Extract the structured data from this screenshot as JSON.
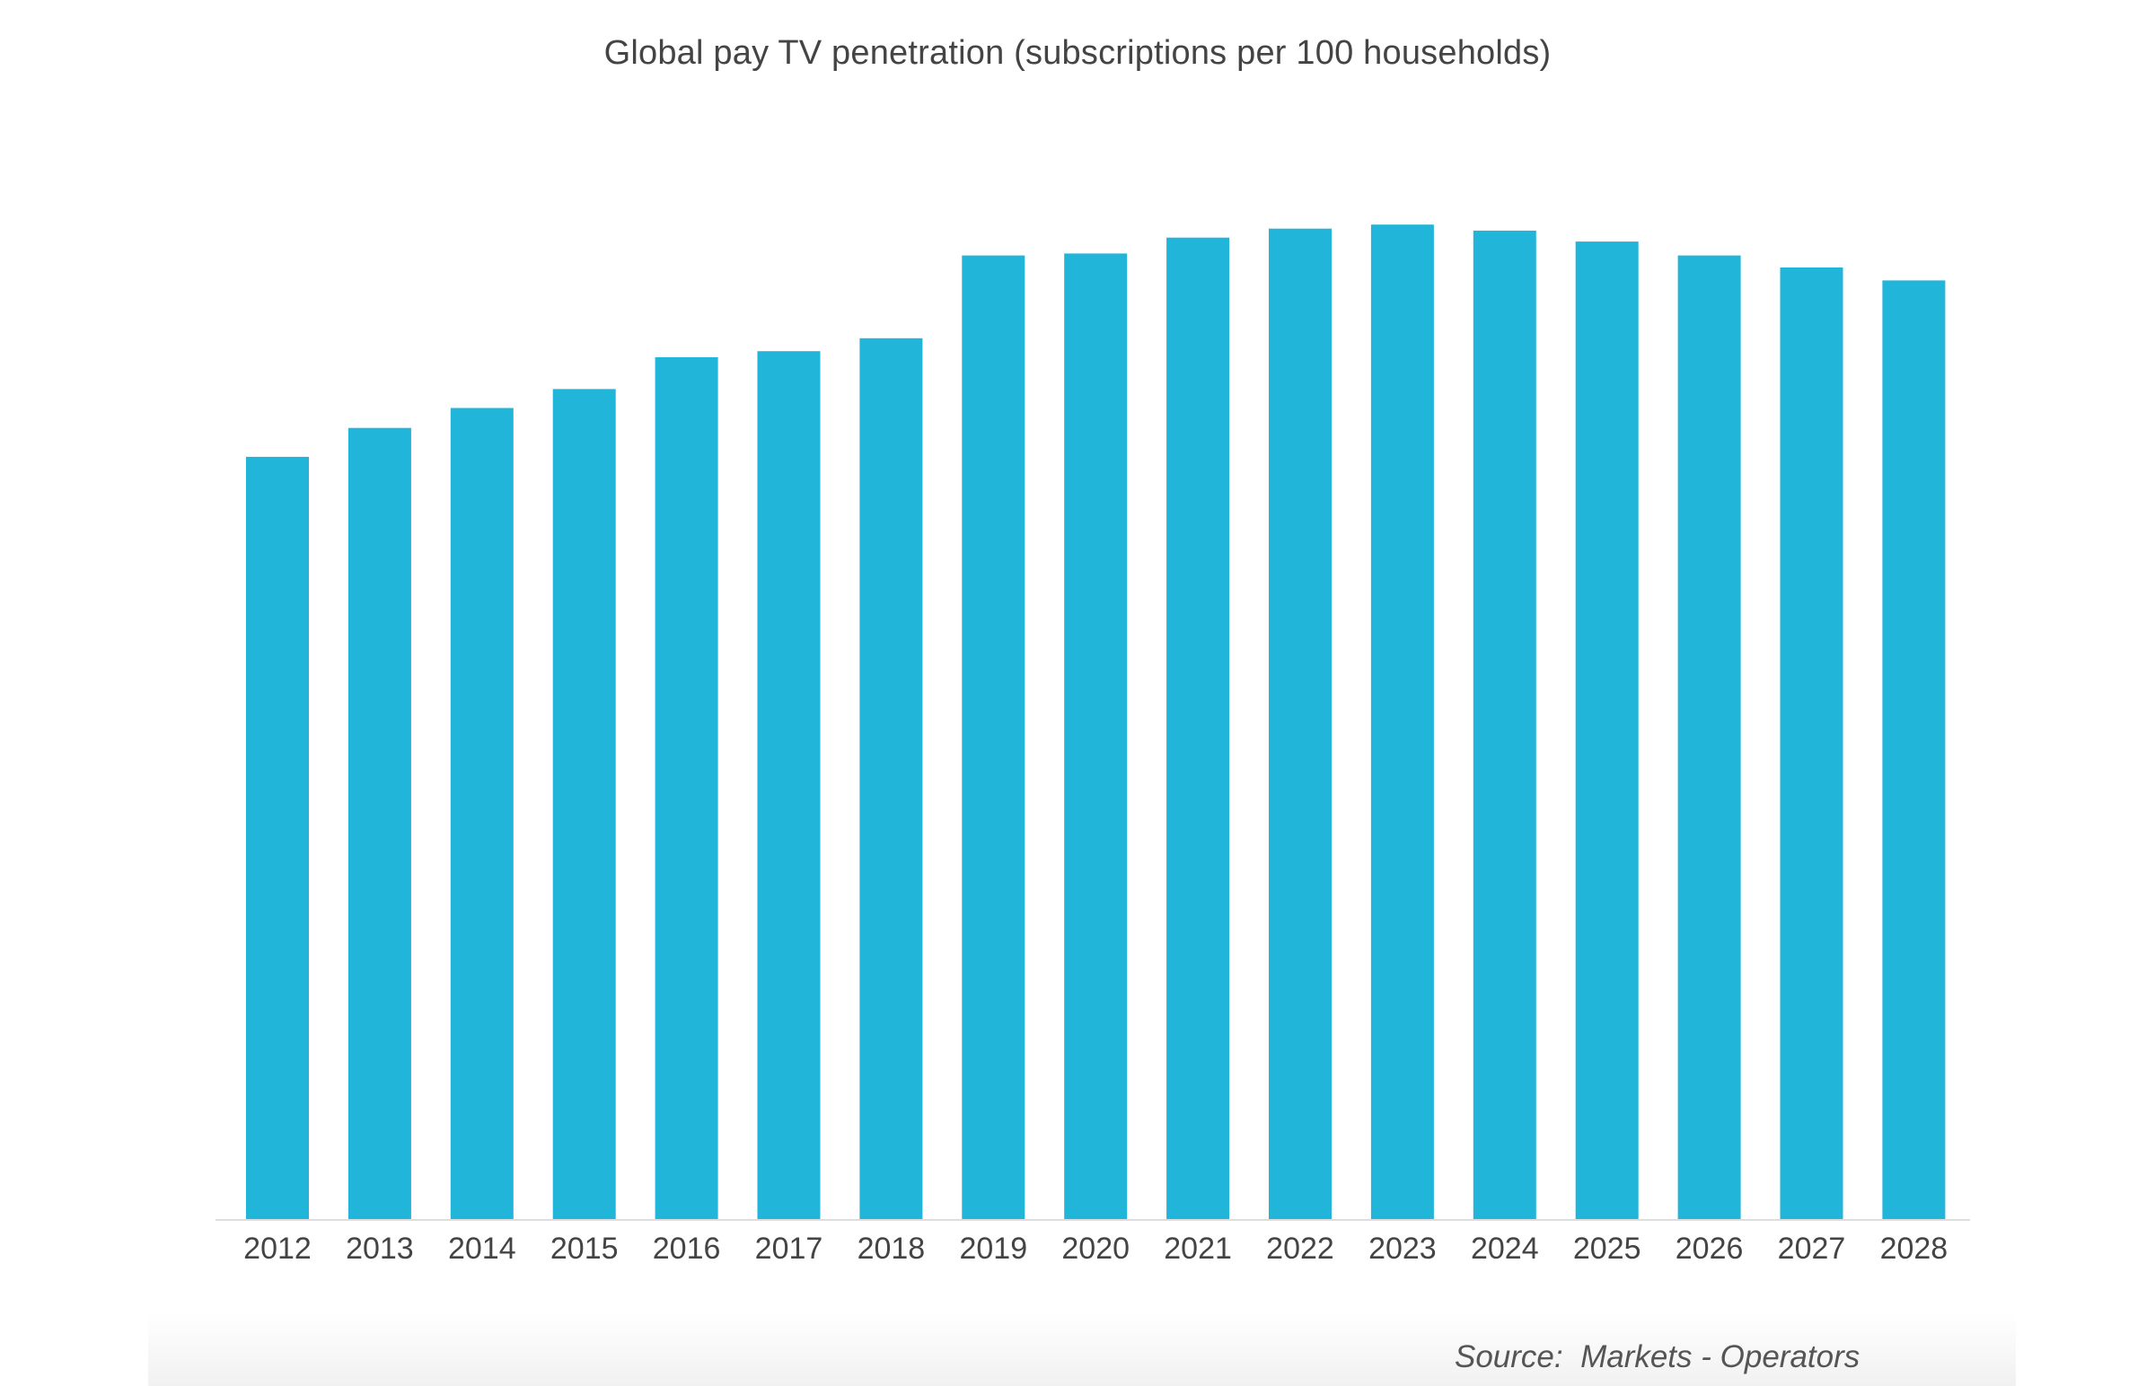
{
  "source_note": "Source:  Markets - Operators",
  "colors": {
    "bar": "#22b5da",
    "axis": "#dddddd",
    "tick_text": "#444444",
    "title_text": "#444444"
  },
  "chart_data": {
    "type": "bar",
    "title": "Global pay TV penetration (subscriptions per 100 households)",
    "xlabel": "",
    "ylabel": "",
    "categories": [
      "2012",
      "2013",
      "2014",
      "2015",
      "2016",
      "2017",
      "2018",
      "2019",
      "2020",
      "2021",
      "2022",
      "2023",
      "2024",
      "2025",
      "2026",
      "2027",
      "2028"
    ],
    "values": [
      76.5,
      79.4,
      81.4,
      83.3,
      86.5,
      87.1,
      88.4,
      96.7,
      96.9,
      98.5,
      99.4,
      99.8,
      99.2,
      98.1,
      96.7,
      95.5,
      94.2
    ],
    "ylim": [
      0,
      100
    ],
    "grid": false,
    "legend": "none"
  }
}
